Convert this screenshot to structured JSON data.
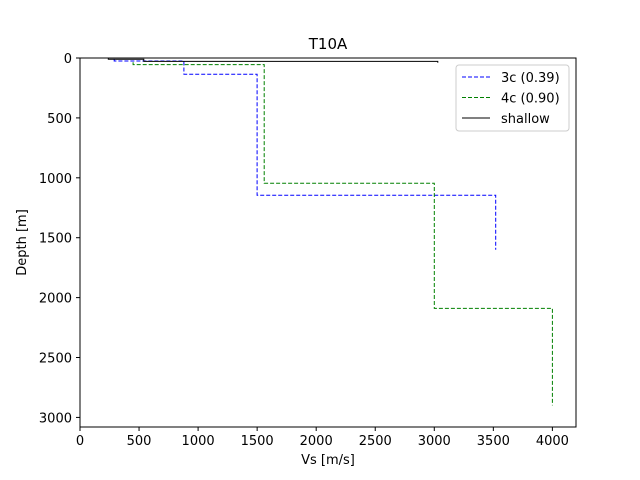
{
  "chart_data": {
    "type": "line",
    "title": "T10A",
    "xlabel": "Vs [m/s]",
    "ylabel": "Depth [m]",
    "xlim": [
      0,
      4200
    ],
    "ylim": [
      3080,
      0
    ],
    "y_inverted": true,
    "xticks": [
      0,
      500,
      1000,
      1500,
      2000,
      2500,
      3000,
      3500,
      4000
    ],
    "yticks": [
      0,
      500,
      1000,
      1500,
      2000,
      2500,
      3000
    ],
    "grid": false,
    "legend_position": "top-right",
    "series": [
      {
        "name": "3c (0.39)",
        "color": "#0000ff",
        "dash": "dashed",
        "x": [
          290,
          290,
          880,
          880,
          1500,
          1500,
          3520,
          3520
        ],
        "y": [
          10,
          25,
          25,
          135,
          135,
          1145,
          1145,
          1600
        ]
      },
      {
        "name": "4c (0.90)",
        "color": "#008000",
        "dash": "dashed",
        "x": [
          450,
          450,
          1560,
          1560,
          3000,
          3000,
          4000,
          4000
        ],
        "y": [
          35,
          55,
          55,
          1045,
          1045,
          2090,
          2090,
          2900
        ]
      },
      {
        "name": "shallow",
        "color": "#000000",
        "dash": "solid",
        "x": [
          240,
          240,
          540,
          540,
          3030,
          3030
        ],
        "y": [
          0,
          10,
          10,
          28,
          28,
          40
        ]
      }
    ]
  }
}
